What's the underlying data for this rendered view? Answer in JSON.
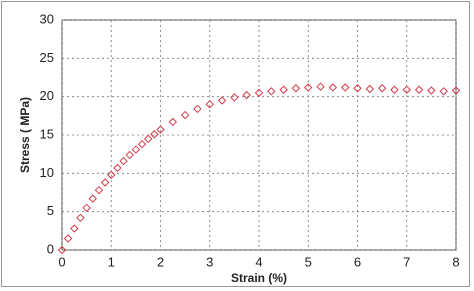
{
  "chart_data": {
    "type": "scatter",
    "x_label": "Strain  (%)",
    "y_label": "Stress ( MPa)",
    "xlim": [
      0,
      8
    ],
    "ylim": [
      0,
      30
    ],
    "xticks": [
      0,
      1,
      2,
      3,
      4,
      5,
      6,
      7,
      8
    ],
    "yticks": [
      0,
      5,
      10,
      15,
      20,
      25,
      30
    ],
    "grid": true,
    "marker": "diamond",
    "x": [
      0,
      0.125,
      0.25,
      0.375,
      0.5,
      0.625,
      0.75,
      0.875,
      1,
      1.125,
      1.25,
      1.375,
      1.5,
      1.625,
      1.75,
      1.875,
      2,
      2.25,
      2.5,
      2.75,
      3,
      3.25,
      3.5,
      3.75,
      4,
      4.25,
      4.5,
      4.75,
      5,
      5.25,
      5.5,
      5.75,
      6,
      6.25,
      6.5,
      6.75,
      7,
      7.25,
      7.5,
      7.75,
      8
    ],
    "series": [
      {
        "color": "#d23c4a",
        "values": [
          0,
          1.5,
          2.8,
          4.2,
          5.5,
          6.7,
          7.8,
          8.8,
          9.8,
          10.7,
          11.6,
          12.4,
          13.1,
          13.8,
          14.5,
          15.1,
          15.7,
          16.7,
          17.6,
          18.4,
          19,
          19.5,
          19.9,
          20.2,
          20.5,
          20.7,
          20.9,
          21.1,
          21.2,
          21.3,
          21.2,
          21.2,
          21.1,
          21,
          21.1,
          20.9,
          20.9,
          20.9,
          20.8,
          20.7,
          20.8
        ]
      }
    ]
  }
}
